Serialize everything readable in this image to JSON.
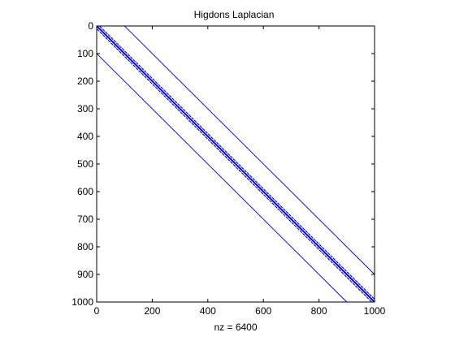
{
  "chart_data": {
    "type": "spy",
    "title": "Higdons Laplacian",
    "xlabel": "nz = 6400",
    "ylabel": "",
    "xlim": [
      0,
      1000
    ],
    "ylim": [
      0,
      1000
    ],
    "y_reversed": true,
    "grid": false,
    "legend": "none",
    "x_ticks": [
      0,
      200,
      400,
      600,
      800,
      1000
    ],
    "y_ticks": [
      0,
      100,
      200,
      300,
      400,
      500,
      600,
      700,
      800,
      900,
      1000
    ],
    "marker_color": "#0000cc",
    "diagonal_offsets": [
      -100,
      -10,
      -1,
      0,
      1,
      10,
      100
    ],
    "dense_offsets": [
      -1,
      0,
      1
    ],
    "gapped_offsets": [
      -10,
      10
    ],
    "gap_period": 10,
    "matrix_size": 1000
  }
}
